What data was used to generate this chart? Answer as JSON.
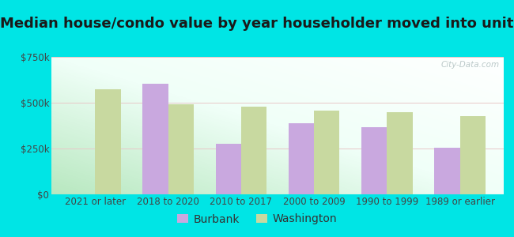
{
  "title": "Median house/condo value by year householder moved into unit",
  "categories": [
    "2021 or later",
    "2018 to 2020",
    "2010 to 2017",
    "2000 to 2009",
    "1990 to 1999",
    "1989 or earlier"
  ],
  "burbank": [
    null,
    605000,
    275000,
    390000,
    365000,
    255000
  ],
  "washington": [
    575000,
    490000,
    480000,
    455000,
    450000,
    425000
  ],
  "burbank_color": "#c9a8df",
  "washington_color": "#c8d9a0",
  "figure_bg_color": "#00e5e5",
  "plot_bg_color": "#e8f7ee",
  "ylim": [
    0,
    750000
  ],
  "yticks": [
    0,
    250000,
    500000,
    750000
  ],
  "ytick_labels": [
    "$0",
    "$250k",
    "$500k",
    "$750k"
  ],
  "legend_burbank": "Burbank",
  "legend_washington": "Washington",
  "title_fontsize": 13,
  "tick_fontsize": 8.5,
  "legend_fontsize": 10,
  "bar_width": 0.35,
  "watermark": "City-Data.com"
}
